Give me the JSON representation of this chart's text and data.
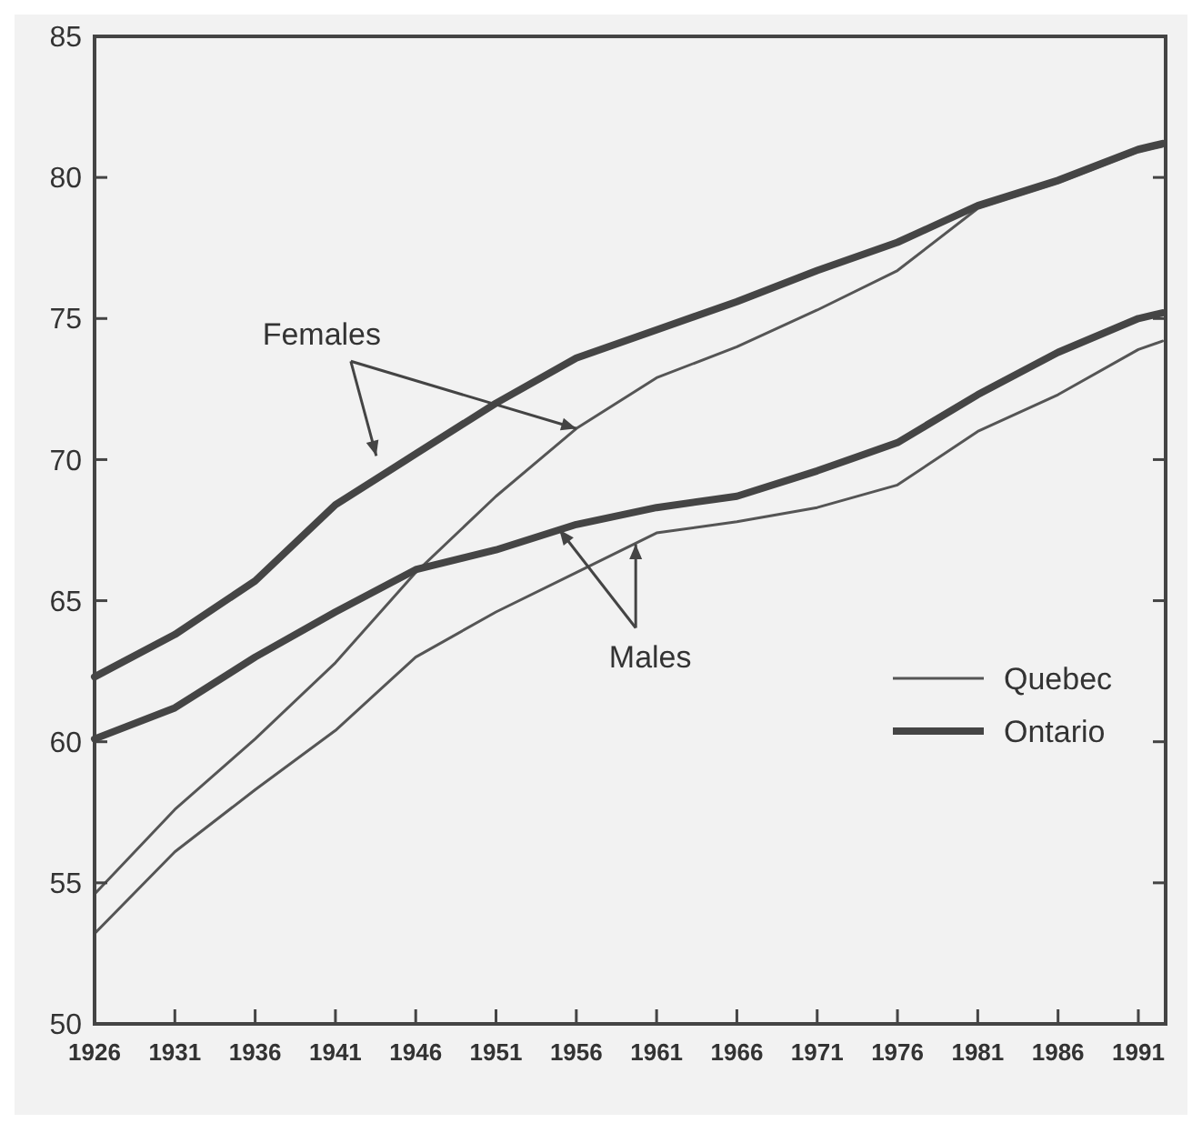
{
  "chart_data": {
    "type": "line",
    "x": [
      1926,
      1931,
      1936,
      1941,
      1946,
      1951,
      1956,
      1961,
      1966,
      1971,
      1976,
      1981,
      1986,
      1991,
      1992.5
    ],
    "series": [
      {
        "name": "Quebec",
        "color": "#555555",
        "values": [
          54.6,
          57.6,
          60.1,
          62.8,
          66.0,
          68.7,
          71.1,
          72.9,
          74.0,
          75.3,
          76.7,
          78.9,
          79.8,
          80.9,
          81.1
        ]
      },
      {
        "name": "Ontario",
        "color": "#454545",
        "values": [
          62.3,
          63.8,
          65.7,
          68.4,
          70.2,
          72.0,
          73.6,
          74.6,
          75.6,
          76.7,
          77.7,
          79.0,
          79.9,
          81.0,
          81.2
        ]
      },
      {
        "color": "#555555",
        "values": [
          53.2,
          56.1,
          58.3,
          60.4,
          63.0,
          64.6,
          66.0,
          67.4,
          67.8,
          68.3,
          69.1,
          71.0,
          72.3,
          73.9,
          74.2
        ]
      },
      {
        "color": "#454545",
        "values": [
          60.1,
          61.2,
          63.0,
          64.6,
          66.1,
          66.8,
          67.7,
          68.3,
          68.7,
          69.6,
          70.6,
          72.3,
          73.8,
          75.0,
          75.2
        ]
      }
    ],
    "xlim": [
      1926,
      1992.7
    ],
    "xticks": [
      1926,
      1931,
      1936,
      1941,
      1946,
      1951,
      1956,
      1961,
      1966,
      1971,
      1976,
      1981,
      1986,
      1991
    ],
    "ylim": [
      50,
      85
    ],
    "yticks": [
      50,
      55,
      60,
      65,
      70,
      75,
      80,
      85
    ],
    "annotations": [
      {
        "text": "Females",
        "x": 1956,
        "y": 71.1
      },
      {
        "text": "Males",
        "x": 1959.7,
        "y": 67.0
      }
    ],
    "legend": "bottom right",
    "grid": false,
    "marker": "none",
    "line_style": "solid"
  }
}
